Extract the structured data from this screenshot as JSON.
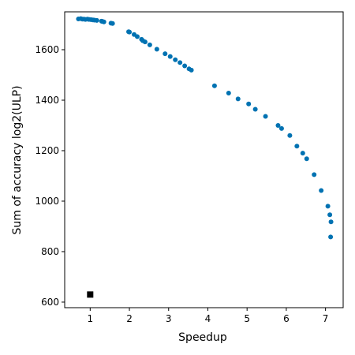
{
  "chart_data": {
    "type": "scatter",
    "title": "",
    "xlabel": "Speedup",
    "ylabel": "Sum of accuracy log2(ULP)",
    "xlim": [
      0.35,
      7.45
    ],
    "ylim": [
      578,
      1750
    ],
    "xticks": [
      1,
      2,
      3,
      4,
      5,
      6,
      7
    ],
    "yticks": [
      600,
      800,
      1000,
      1200,
      1400,
      1600
    ],
    "grid": false,
    "legend": "none",
    "series": [
      {
        "marker": "circle",
        "color": "#0072b2",
        "points": [
          [
            0.7,
            1722
          ],
          [
            0.76,
            1723
          ],
          [
            0.8,
            1721
          ],
          [
            0.84,
            1721
          ],
          [
            0.88,
            1720
          ],
          [
            0.93,
            1721
          ],
          [
            0.97,
            1720
          ],
          [
            1.02,
            1719
          ],
          [
            1.07,
            1718
          ],
          [
            1.11,
            1717
          ],
          [
            1.17,
            1716
          ],
          [
            1.29,
            1713
          ],
          [
            1.31,
            1712
          ],
          [
            1.35,
            1710
          ],
          [
            1.53,
            1705
          ],
          [
            1.57,
            1704
          ],
          [
            1.98,
            1671
          ],
          [
            2.0,
            1670
          ],
          [
            2.12,
            1660
          ],
          [
            2.2,
            1652
          ],
          [
            2.31,
            1641
          ],
          [
            2.34,
            1636
          ],
          [
            2.4,
            1631
          ],
          [
            2.52,
            1619
          ],
          [
            2.7,
            1602
          ],
          [
            2.91,
            1584
          ],
          [
            3.04,
            1573
          ],
          [
            3.17,
            1560
          ],
          [
            3.29,
            1549
          ],
          [
            3.41,
            1536
          ],
          [
            3.52,
            1524
          ],
          [
            3.58,
            1519
          ],
          [
            4.17,
            1457
          ],
          [
            4.53,
            1428
          ],
          [
            4.77,
            1405
          ],
          [
            5.04,
            1385
          ],
          [
            5.21,
            1364
          ],
          [
            5.47,
            1336
          ],
          [
            5.79,
            1300
          ],
          [
            5.88,
            1288
          ],
          [
            6.09,
            1260
          ],
          [
            6.27,
            1218
          ],
          [
            6.42,
            1190
          ],
          [
            6.52,
            1168
          ],
          [
            6.71,
            1105
          ],
          [
            6.89,
            1042
          ],
          [
            7.06,
            980
          ],
          [
            7.11,
            946
          ],
          [
            7.14,
            918
          ],
          [
            7.13,
            858
          ]
        ]
      },
      {
        "marker": "square",
        "color": "#000000",
        "points": [
          [
            1.0,
            630
          ]
        ]
      }
    ]
  }
}
